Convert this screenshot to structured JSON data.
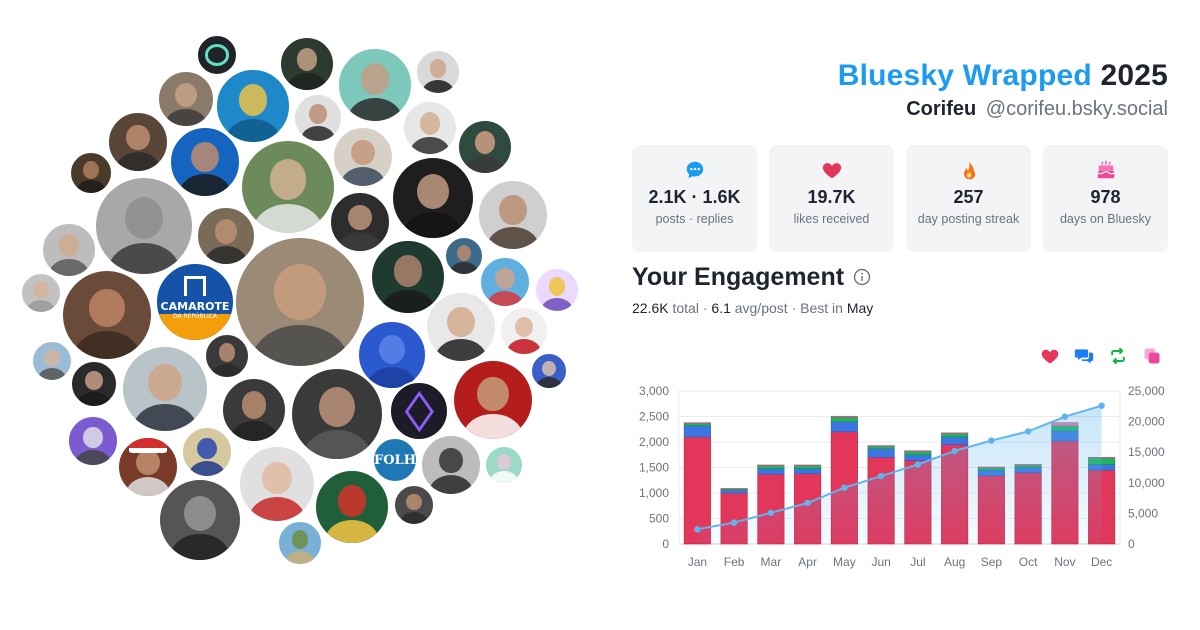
{
  "header": {
    "title_accent": "Bluesky Wrapped",
    "title_year": "2025",
    "display_name": "Corifeu",
    "handle": "@corifeu.bsky.social"
  },
  "stats": [
    {
      "icon": "speech-bubble-icon",
      "value": "2.1K · 1.6K",
      "label": "posts · replies"
    },
    {
      "icon": "heart-icon",
      "value": "19.7K",
      "label": "likes received"
    },
    {
      "icon": "fire-icon",
      "value": "257",
      "label": "day posting streak"
    },
    {
      "icon": "cake-icon",
      "value": "978",
      "label": "days on Bluesky"
    }
  ],
  "engagement": {
    "title": "Your Engagement",
    "total_value": "22.6K",
    "total_label": "total",
    "avg_value": "6.1",
    "avg_label": "avg/post",
    "best_label": "Best in",
    "best_month": "May"
  },
  "legend": [
    {
      "icon": "heart-icon",
      "color": "#e2365b"
    },
    {
      "icon": "reply-bubbles-icon",
      "color": "#1d7cf2"
    },
    {
      "icon": "repost-icon",
      "color": "#16b34a"
    },
    {
      "icon": "quote-icon",
      "color": "#ec4899"
    }
  ],
  "avatar_badges": {
    "camarote_line1": "CAMAROTE",
    "camarote_line2": "DA REPÚBLICA",
    "folha": "FOLHA"
  },
  "colors": {
    "accent": "#1d9bf0",
    "likes": "#e2365b",
    "replies": "#3b76e1",
    "reposts": "#22b45c",
    "quotes": "#e879a6",
    "cumulative": "#5fb6ec"
  },
  "chart_data": {
    "type": "bar",
    "stacked": true,
    "categories": [
      "Jan",
      "Feb",
      "Mar",
      "Apr",
      "May",
      "Jun",
      "Jul",
      "Aug",
      "Sep",
      "Oct",
      "Nov",
      "Dec"
    ],
    "series": [
      {
        "values": [
          2100,
          1000,
          1370,
          1380,
          2200,
          1700,
          1640,
          1950,
          1340,
          1400,
          2020,
          1450
        ]
      },
      {
        "values": [
          220,
          60,
          110,
          100,
          200,
          170,
          110,
          150,
          110,
          100,
          200,
          110
        ]
      },
      {
        "values": [
          50,
          25,
          60,
          60,
          90,
          50,
          70,
          70,
          50,
          50,
          100,
          130
        ]
      },
      {
        "values": [
          10,
          5,
          10,
          10,
          15,
          10,
          10,
          10,
          10,
          10,
          60,
          10
        ]
      }
    ],
    "cumulative": {
      "axis": "right",
      "values": [
        2400,
        3500,
        5100,
        6700,
        9200,
        11100,
        13000,
        15200,
        16900,
        18400,
        20800,
        22600
      ]
    },
    "yleft": {
      "min": 0,
      "max": 3000,
      "ticks": [
        0,
        500,
        1000,
        1500,
        2000,
        2500,
        3000
      ],
      "labels": [
        "0",
        "500",
        "1,000",
        "1,500",
        "2,000",
        "2,500",
        "3,000"
      ]
    },
    "yright": {
      "min": 0,
      "max": 25000,
      "ticks": [
        0,
        5000,
        10000,
        15000,
        20000,
        25000
      ],
      "labels": [
        "0",
        "5,000",
        "10,000",
        "15,000",
        "20,000",
        "25,000"
      ]
    },
    "grid": true,
    "legend": "top-right"
  }
}
